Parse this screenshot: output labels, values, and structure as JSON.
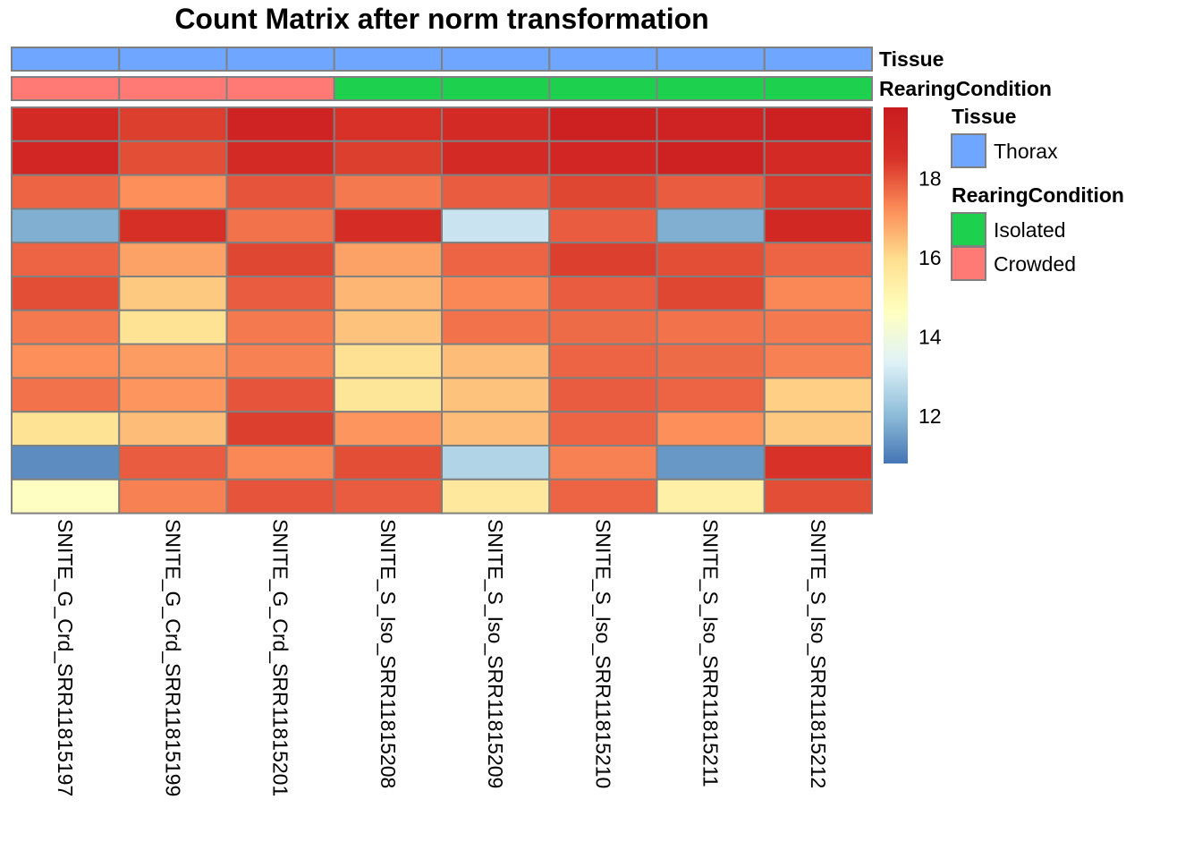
{
  "chart_data": {
    "type": "heatmap",
    "title": "Count Matrix after norm transformation",
    "columns": [
      "SNITE_G_Crd_SRR11815197",
      "SNITE_G_Crd_SRR11815199",
      "SNITE_G_Crd_SRR11815201",
      "SNITE_S_Iso_SRR11815208",
      "SNITE_S_Iso_SRR11815209",
      "SNITE_S_Iso_SRR11815210",
      "SNITE_S_Iso_SRR11815211",
      "SNITE_S_Iso_SRR11815212"
    ],
    "values": [
      [
        18.9,
        18.3,
        19.3,
        18.5,
        18.9,
        19.5,
        19.3,
        19.5
      ],
      [
        19.1,
        18.1,
        18.9,
        18.3,
        18.9,
        19.1,
        19.4,
        18.9
      ],
      [
        17.8,
        17.2,
        18.0,
        17.5,
        17.9,
        18.2,
        17.9,
        18.4
      ],
      [
        11.8,
        18.6,
        17.6,
        18.7,
        13.0,
        17.9,
        11.8,
        19.0
      ],
      [
        17.8,
        16.9,
        18.2,
        16.9,
        17.8,
        18.3,
        18.1,
        17.8
      ],
      [
        18.1,
        16.3,
        17.9,
        16.6,
        17.3,
        17.9,
        18.2,
        17.3
      ],
      [
        17.5,
        15.8,
        17.5,
        16.4,
        17.6,
        17.7,
        17.6,
        17.5
      ],
      [
        17.2,
        17.0,
        17.4,
        15.9,
        16.5,
        17.8,
        17.7,
        17.4
      ],
      [
        17.6,
        17.1,
        18.0,
        15.7,
        16.4,
        17.9,
        17.8,
        16.2
      ],
      [
        15.8,
        16.5,
        18.3,
        17.1,
        16.5,
        17.8,
        17.2,
        16.3
      ],
      [
        11.2,
        17.9,
        17.3,
        18.1,
        12.6,
        17.4,
        11.4,
        18.5
      ],
      [
        14.6,
        17.4,
        18.0,
        17.9,
        15.6,
        17.8,
        15.3,
        18.1
      ]
    ],
    "colorbar": {
      "min": 10.8,
      "max": 19.8,
      "ticks": [
        12,
        14,
        16,
        18
      ],
      "tick_labels": [
        "12",
        "14",
        "16",
        "18"
      ],
      "colors": [
        "#4575B4",
        "#91BFDB",
        "#E0F3F8",
        "#FFFFBF",
        "#FEE090",
        "#FC8D59",
        "#D73027",
        "#C91B1F"
      ]
    },
    "annotations": [
      {
        "name": "Tissue",
        "values": [
          "Thorax",
          "Thorax",
          "Thorax",
          "Thorax",
          "Thorax",
          "Thorax",
          "Thorax",
          "Thorax"
        ]
      },
      {
        "name": "RearingCondition",
        "values": [
          "Crowded",
          "Crowded",
          "Crowded",
          "Isolated",
          "Isolated",
          "Isolated",
          "Isolated",
          "Isolated"
        ]
      }
    ],
    "legend": [
      {
        "title": "Tissue",
        "items": [
          {
            "label": "Thorax",
            "color": "#6FA6FF"
          }
        ]
      },
      {
        "title": "RearingCondition",
        "items": [
          {
            "label": "Isolated",
            "color": "#1DD14E"
          },
          {
            "label": "Crowded",
            "color": "#FF7A74"
          }
        ]
      }
    ]
  },
  "colors": {
    "border": "#808080",
    "Thorax": "#6FA6FF",
    "Isolated": "#1DD14E",
    "Crowded": "#FF7A74"
  }
}
